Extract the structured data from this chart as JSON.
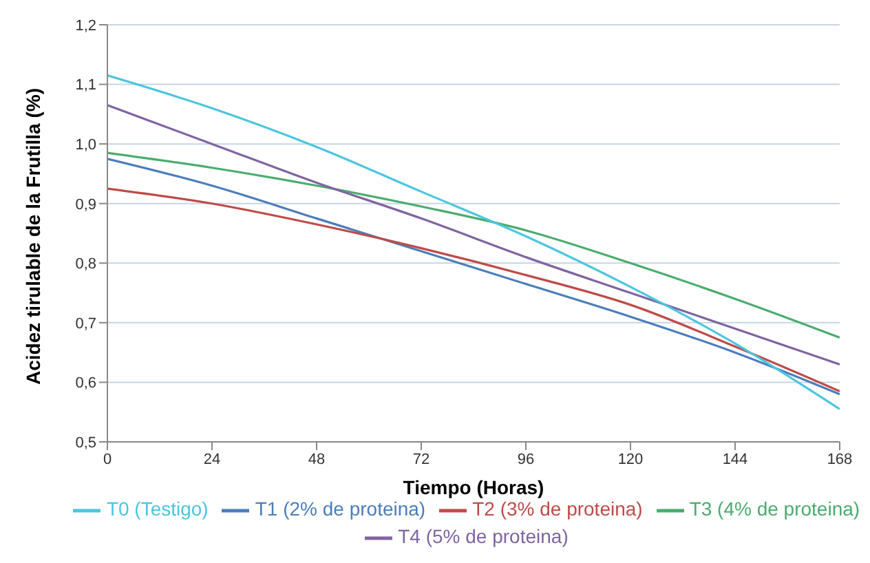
{
  "chart_data": {
    "type": "line",
    "xlabel": "Tiempo (Horas)",
    "ylabel": "Acidez tirulable de la Frutilla (%)",
    "x": [
      0,
      24,
      48,
      72,
      96,
      120,
      144,
      168
    ],
    "xlim": [
      0,
      168
    ],
    "xticks": [
      0,
      24,
      48,
      72,
      96,
      120,
      144,
      168
    ],
    "ylim": [
      0.5,
      1.2
    ],
    "yticks": [
      {
        "value": 0.5,
        "label": "0,5"
      },
      {
        "value": 0.6,
        "label": "0,6"
      },
      {
        "value": 0.7,
        "label": "0,7"
      },
      {
        "value": 0.8,
        "label": "0,8"
      },
      {
        "value": 0.9,
        "label": "0,9"
      },
      {
        "value": 1.0,
        "label": "1,0"
      },
      {
        "value": 1.1,
        "label": "1,1"
      },
      {
        "value": 1.2,
        "label": "1,2"
      }
    ],
    "grid": "y",
    "legend": "bottom",
    "marker": "none",
    "line_style": "solid",
    "series": [
      {
        "name": "T1 (2% de proteina)",
        "color": "#4a7ebb",
        "values": [
          0.975,
          0.93,
          0.875,
          0.82,
          0.765,
          0.71,
          0.65,
          0.58
        ]
      },
      {
        "name": "T2 (3% de proteina)",
        "color": "#be4b48",
        "values": [
          0.925,
          0.9,
          0.865,
          0.825,
          0.78,
          0.73,
          0.66,
          0.585
        ]
      },
      {
        "name": "T3 (4% de proteina)",
        "color": "#4bac6e",
        "values": [
          0.985,
          0.96,
          0.93,
          0.895,
          0.855,
          0.8,
          0.74,
          0.675
        ]
      },
      {
        "name": "T4 (5% de proteina)",
        "color": "#8064a2",
        "values": [
          1.065,
          1.0,
          0.935,
          0.875,
          0.81,
          0.75,
          0.69,
          0.63
        ]
      },
      {
        "name": "T0 (Testigo)",
        "color": "#4bc6e0",
        "values": [
          1.115,
          1.06,
          0.995,
          0.92,
          0.845,
          0.76,
          0.665,
          0.555
        ]
      }
    ]
  }
}
